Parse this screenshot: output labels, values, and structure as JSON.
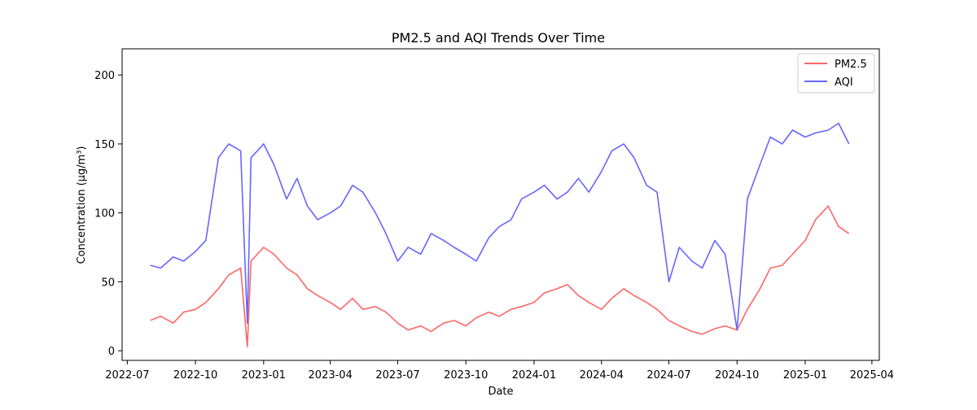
{
  "chart_data": {
    "type": "line",
    "title": "PM2.5 and AQI Trends Over Time",
    "xlabel": "Date",
    "ylabel": "Concentration (µg/m³)",
    "xlim": [
      "2022-06-24",
      "2025-04-11"
    ],
    "ylim": [
      -7,
      219
    ],
    "xticks": [
      {
        "date": "2022-07-01",
        "label": "2022-07"
      },
      {
        "date": "2022-10-01",
        "label": "2022-10"
      },
      {
        "date": "2023-01-01",
        "label": "2023-01"
      },
      {
        "date": "2023-04-01",
        "label": "2023-04"
      },
      {
        "date": "2023-07-01",
        "label": "2023-07"
      },
      {
        "date": "2023-10-01",
        "label": "2023-10"
      },
      {
        "date": "2024-01-01",
        "label": "2024-01"
      },
      {
        "date": "2024-04-01",
        "label": "2024-04"
      },
      {
        "date": "2024-07-01",
        "label": "2024-07"
      },
      {
        "date": "2024-10-01",
        "label": "2024-10"
      },
      {
        "date": "2025-01-01",
        "label": "2025-01"
      },
      {
        "date": "2025-04-01",
        "label": "2025-04"
      }
    ],
    "yticks": [
      0,
      50,
      100,
      150,
      200
    ],
    "grid": false,
    "legend_position": "top-right",
    "x": [
      "2022-08-01",
      "2022-08-15",
      "2022-09-01",
      "2022-09-15",
      "2022-10-01",
      "2022-10-15",
      "2022-11-01",
      "2022-11-15",
      "2022-12-01",
      "2022-12-10",
      "2022-12-15",
      "2023-01-01",
      "2023-01-15",
      "2023-02-01",
      "2023-02-15",
      "2023-03-01",
      "2023-03-15",
      "2023-04-01",
      "2023-04-15",
      "2023-05-01",
      "2023-05-15",
      "2023-06-01",
      "2023-06-15",
      "2023-07-01",
      "2023-07-15",
      "2023-08-01",
      "2023-08-15",
      "2023-09-01",
      "2023-09-15",
      "2023-10-01",
      "2023-10-15",
      "2023-11-01",
      "2023-11-15",
      "2023-12-01",
      "2023-12-15",
      "2024-01-01",
      "2024-01-15",
      "2024-02-01",
      "2024-02-15",
      "2024-03-01",
      "2024-03-15",
      "2024-04-01",
      "2024-04-15",
      "2024-05-01",
      "2024-05-15",
      "2024-06-01",
      "2024-06-15",
      "2024-07-01",
      "2024-07-15",
      "2024-08-01",
      "2024-08-15",
      "2024-09-01",
      "2024-09-15",
      "2024-10-01",
      "2024-10-15",
      "2024-11-01",
      "2024-11-15",
      "2024-12-01",
      "2024-12-15",
      "2025-01-01",
      "2025-01-15",
      "2025-02-01",
      "2025-02-15",
      "2025-03-01"
    ],
    "series": [
      {
        "name": "PM2.5",
        "color": "#ff6666",
        "values": [
          22,
          25,
          20,
          28,
          30,
          35,
          45,
          55,
          60,
          3,
          65,
          75,
          70,
          60,
          55,
          45,
          40,
          35,
          30,
          38,
          30,
          32,
          28,
          20,
          15,
          18,
          14,
          20,
          22,
          18,
          24,
          28,
          25,
          30,
          32,
          35,
          42,
          45,
          48,
          40,
          35,
          30,
          38,
          45,
          40,
          35,
          30,
          22,
          18,
          14,
          12,
          16,
          18,
          15,
          30,
          45,
          60,
          62,
          70,
          80,
          95,
          105,
          90,
          85
        ]
      },
      {
        "name": "AQI",
        "color": "#6666ff",
        "values": [
          62,
          60,
          68,
          65,
          72,
          80,
          140,
          150,
          145,
          20,
          140,
          150,
          135,
          110,
          125,
          105,
          95,
          100,
          105,
          120,
          115,
          100,
          85,
          65,
          75,
          70,
          85,
          80,
          75,
          70,
          65,
          82,
          90,
          95,
          110,
          115,
          120,
          110,
          115,
          125,
          115,
          130,
          145,
          150,
          140,
          120,
          115,
          50,
          75,
          65,
          60,
          80,
          70,
          15,
          110,
          135,
          155,
          150,
          160,
          155,
          158,
          160,
          165,
          150
        ]
      }
    ]
  }
}
